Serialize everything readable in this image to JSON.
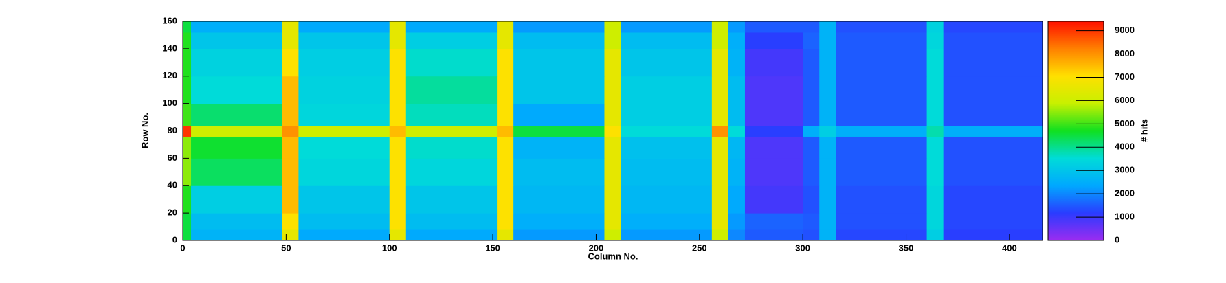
{
  "chart_data": {
    "type": "heatmap",
    "x_label": "Column No.",
    "y_label": "Row No.",
    "z_label": "# hits",
    "xbins": [
      0,
      4,
      48,
      56,
      100,
      108,
      152,
      160,
      204,
      212,
      256,
      264,
      272,
      300,
      308,
      316,
      360,
      368,
      416
    ],
    "ybins": [
      0,
      8,
      20,
      40,
      60,
      76,
      84,
      100,
      120,
      140,
      152,
      160
    ],
    "z": [
      [
        4500,
        2600,
        6500,
        2400,
        6500,
        2400,
        6500,
        2200,
        6000,
        2200,
        6000,
        2000,
        1500,
        1400,
        2600,
        1300,
        3200,
        1200
      ],
      [
        4500,
        2800,
        7000,
        2800,
        7000,
        2800,
        7000,
        2500,
        6500,
        2500,
        6500,
        2200,
        1600,
        1500,
        2600,
        1400,
        3400,
        1300
      ],
      [
        4800,
        3200,
        7500,
        3000,
        7000,
        3000,
        7000,
        2700,
        6500,
        2700,
        6500,
        2400,
        900,
        1400,
        2600,
        1400,
        3400,
        1300
      ],
      [
        5500,
        4300,
        7500,
        3400,
        7000,
        3400,
        7000,
        2800,
        6500,
        2800,
        6500,
        2600,
        800,
        1500,
        2600,
        1500,
        3500,
        1400
      ],
      [
        5500,
        4600,
        7500,
        3500,
        7000,
        3600,
        7000,
        2600,
        6500,
        2900,
        6500,
        2700,
        800,
        1500,
        2600,
        1500,
        3500,
        1400
      ],
      [
        9000,
        6000,
        8000,
        6000,
        7500,
        6000,
        7500,
        4500,
        7000,
        3500,
        8000,
        3500,
        1200,
        2500,
        3200,
        2500,
        3800,
        2500
      ],
      [
        5000,
        4200,
        7500,
        3400,
        7000,
        3700,
        7000,
        2400,
        6500,
        3200,
        6500,
        2800,
        800,
        1500,
        2600,
        1500,
        3500,
        1400
      ],
      [
        4800,
        3500,
        7500,
        3300,
        7000,
        3900,
        7000,
        3000,
        6500,
        3200,
        6500,
        2800,
        800,
        1500,
        2600,
        1500,
        3500,
        1400
      ],
      [
        4800,
        3300,
        7000,
        3200,
        7000,
        3600,
        7000,
        3000,
        6500,
        3000,
        6500,
        2600,
        900,
        1500,
        2600,
        1500,
        3500,
        1400
      ],
      [
        4800,
        3000,
        6500,
        3000,
        6500,
        3200,
        6500,
        2800,
        6000,
        2800,
        6000,
        2500,
        1200,
        1600,
        2600,
        1500,
        3400,
        1400
      ],
      [
        4500,
        2500,
        6500,
        2400,
        6500,
        2400,
        6500,
        2200,
        6000,
        2200,
        6000,
        2200,
        1500,
        1500,
        2600,
        1400,
        3300,
        1300
      ]
    ],
    "xlim": [
      0,
      416
    ],
    "xticks": [
      0,
      50,
      100,
      150,
      200,
      250,
      300,
      350,
      400
    ],
    "ylim": [
      0,
      160
    ],
    "yticks": [
      0,
      20,
      40,
      60,
      80,
      100,
      120,
      140,
      160
    ],
    "zlim": [
      0,
      9400
    ],
    "zticks": [
      0,
      1000,
      2000,
      3000,
      4000,
      5000,
      6000,
      7000,
      8000,
      9000
    ],
    "colors": [
      "#9b2cf0",
      "#2a3cff",
      "#00a8ff",
      "#00dcd8",
      "#10e020",
      "#c8f000",
      "#ffe000",
      "#ff8000",
      "#ff1000"
    ]
  }
}
